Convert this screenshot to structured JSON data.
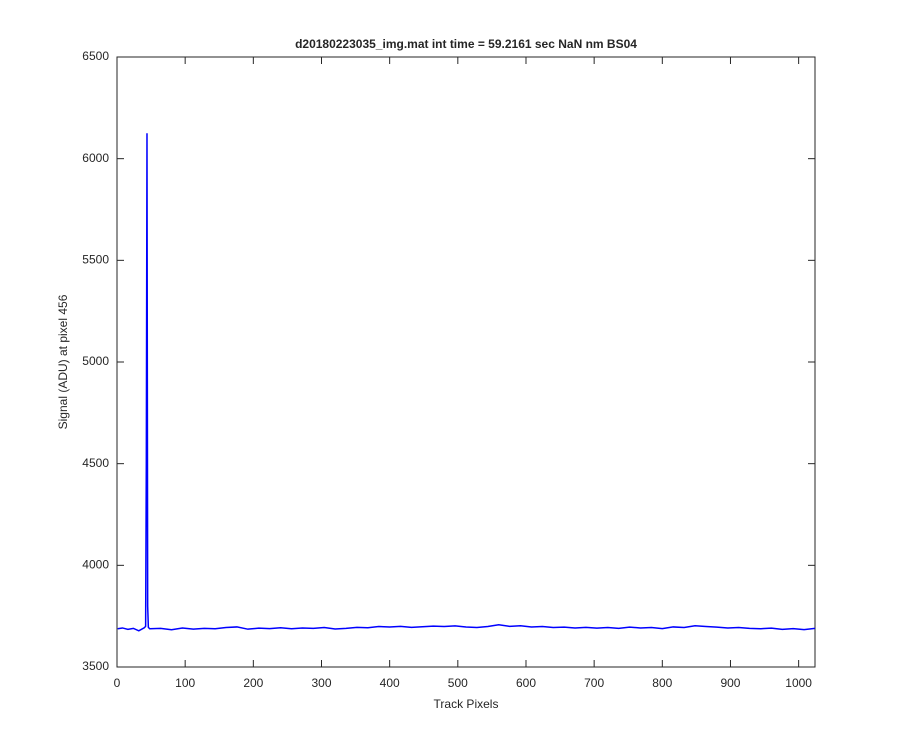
{
  "chart_data": {
    "type": "line",
    "title": "d20180223035_img.mat int time = 59.2161 sec  NaN nm BS04",
    "x_label": "Track Pixels",
    "y_label": "Signal (ADU) at pixel 456",
    "color": "#0000ff",
    "x": [
      1,
      8,
      16,
      24,
      32,
      40,
      42,
      43,
      44,
      45,
      46,
      48,
      64,
      80,
      96,
      112,
      128,
      144,
      160,
      176,
      192,
      208,
      224,
      240,
      256,
      272,
      288,
      304,
      320,
      336,
      352,
      368,
      384,
      400,
      416,
      432,
      448,
      464,
      480,
      496,
      512,
      528,
      544,
      560,
      576,
      592,
      608,
      624,
      640,
      656,
      672,
      688,
      704,
      720,
      736,
      752,
      768,
      784,
      800,
      816,
      832,
      848,
      864,
      880,
      896,
      912,
      928,
      944,
      960,
      976,
      992,
      1008,
      1024
    ],
    "values": [
      3688,
      3692,
      3685,
      3690,
      3678,
      3693,
      3700,
      4500,
      6125,
      3800,
      3695,
      3688,
      3690,
      3683,
      3692,
      3686,
      3690,
      3688,
      3694,
      3697,
      3686,
      3691,
      3689,
      3693,
      3688,
      3692,
      3690,
      3694,
      3687,
      3690,
      3695,
      3693,
      3699,
      3697,
      3700,
      3695,
      3698,
      3701,
      3699,
      3702,
      3697,
      3694,
      3699,
      3708,
      3700,
      3703,
      3697,
      3699,
      3694,
      3696,
      3692,
      3695,
      3691,
      3694,
      3690,
      3696,
      3692,
      3694,
      3689,
      3697,
      3694,
      3703,
      3699,
      3696,
      3692,
      3694,
      3690,
      3688,
      3691,
      3685,
      3689,
      3684,
      3690
    ],
    "xlim": [
      0,
      1024
    ],
    "ylim": [
      3500,
      6500
    ],
    "xticks": [
      0,
      100,
      200,
      300,
      400,
      500,
      600,
      700,
      800,
      900,
      1000
    ],
    "yticks": [
      3500,
      4000,
      4500,
      5000,
      5500,
      6000,
      6500
    ]
  }
}
